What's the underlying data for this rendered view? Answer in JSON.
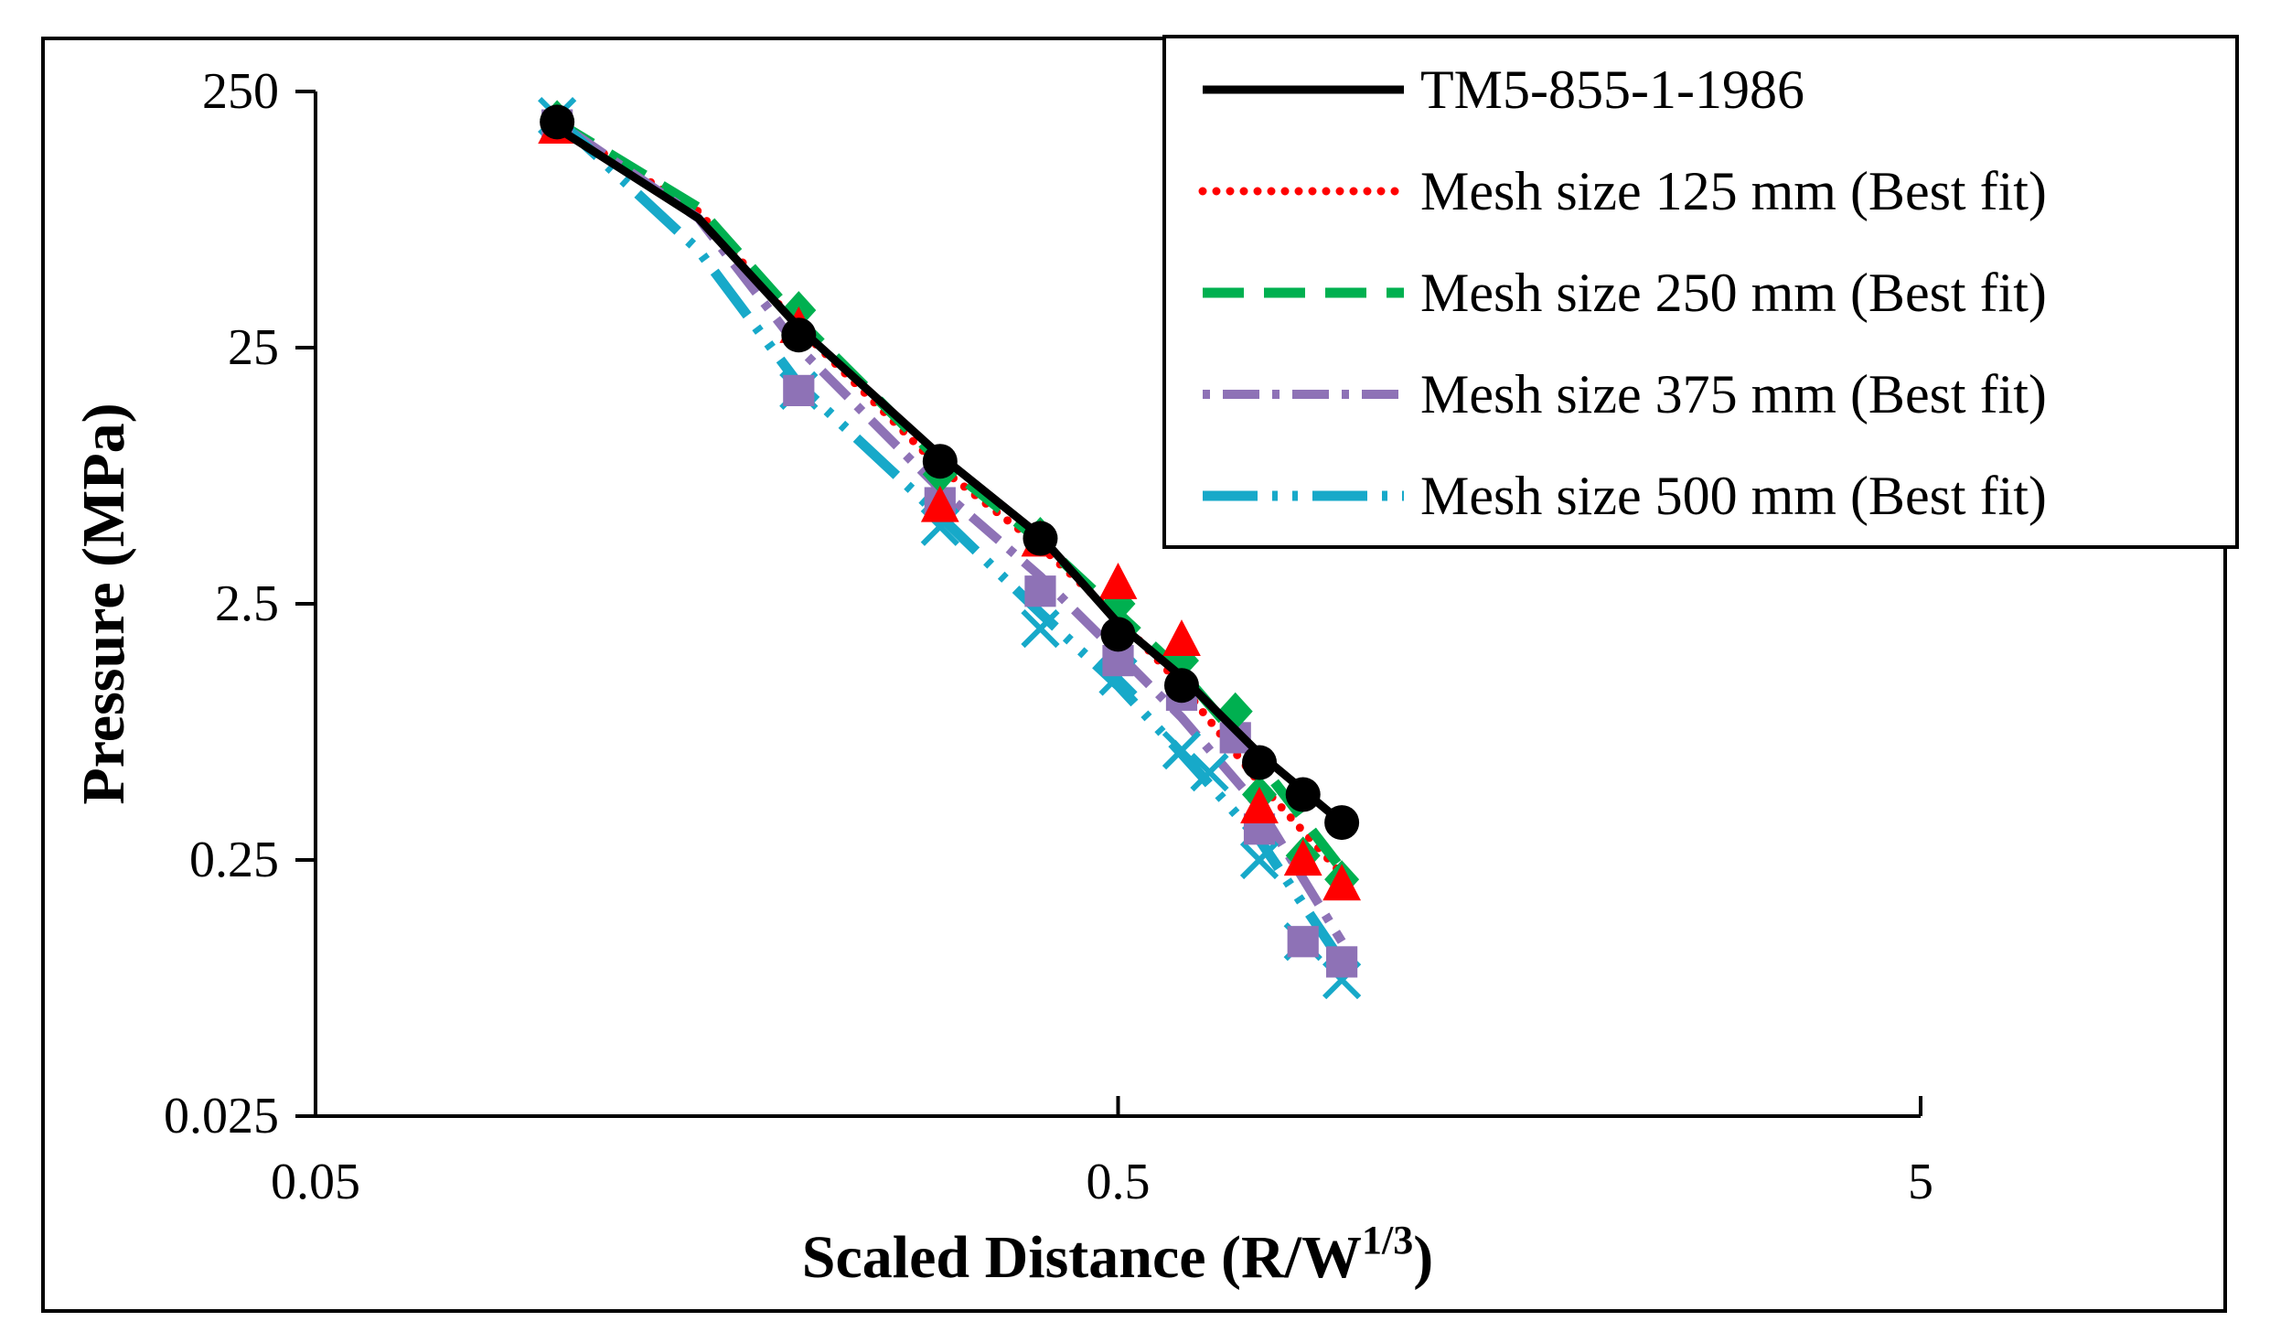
{
  "chart_data": {
    "type": "scatter",
    "x_scale": "log",
    "y_scale": "log",
    "xlabel": "Scaled Distance (R/W",
    "xlabel_sup": "1/3",
    "xlabel_suffix": ")",
    "ylabel": "Pressure (MPa)",
    "xlim": [
      0.05,
      5
    ],
    "ylim": [
      0.025,
      250
    ],
    "x_ticks": [
      0.05,
      0.5,
      5
    ],
    "x_tick_labels": [
      "0.05",
      "0.5",
      "5"
    ],
    "y_ticks": [
      250,
      25,
      2.5,
      0.25,
      0.025
    ],
    "y_tick_labels": [
      "250",
      "25",
      "2.5",
      "0.25",
      "0.025"
    ],
    "legend_position": "top-right",
    "series": [
      {
        "name": "TM5-855-1-1986",
        "color": "#000000",
        "marker": "circle",
        "line": "solid",
        "points": [
          [
            0.1,
            190
          ],
          [
            0.2,
            28
          ],
          [
            0.3,
            9
          ],
          [
            0.4,
            4.5
          ],
          [
            0.5,
            1.9
          ],
          [
            0.6,
            1.2
          ],
          [
            0.75,
            0.6
          ],
          [
            0.85,
            0.45
          ],
          [
            0.95,
            0.35
          ]
        ],
        "fit": [
          [
            0.1,
            180
          ],
          [
            0.15,
            80
          ],
          [
            0.2,
            30
          ],
          [
            0.3,
            9.5
          ],
          [
            0.4,
            4.6
          ],
          [
            0.5,
            2.1
          ],
          [
            0.6,
            1.3
          ],
          [
            0.75,
            0.65
          ],
          [
            0.95,
            0.35
          ]
        ]
      },
      {
        "name": "Mesh size 125 mm (Best fit)",
        "color": "#ff0000",
        "marker": "triangle",
        "line": "dotted",
        "points": [
          [
            0.1,
            180
          ],
          [
            0.2,
            30
          ],
          [
            0.3,
            6
          ],
          [
            0.4,
            4.4
          ],
          [
            0.5,
            3.0
          ],
          [
            0.6,
            1.8
          ],
          [
            0.75,
            0.4
          ],
          [
            0.85,
            0.25
          ],
          [
            0.95,
            0.2
          ]
        ],
        "fit": [
          [
            0.1,
            185
          ],
          [
            0.15,
            85
          ],
          [
            0.2,
            30
          ],
          [
            0.3,
            8.5
          ],
          [
            0.4,
            4.2
          ],
          [
            0.5,
            2.2
          ],
          [
            0.6,
            1.2
          ],
          [
            0.75,
            0.5
          ],
          [
            0.95,
            0.22
          ]
        ]
      },
      {
        "name": "Mesh size 250 mm (Best fit)",
        "color": "#00b050",
        "marker": "diamond",
        "line": "dashed",
        "points": [
          [
            0.1,
            195
          ],
          [
            0.2,
            35
          ],
          [
            0.3,
            8
          ],
          [
            0.4,
            4.6
          ],
          [
            0.5,
            2.5
          ],
          [
            0.6,
            1.5
          ],
          [
            0.7,
            0.95
          ],
          [
            0.75,
            0.45
          ],
          [
            0.85,
            0.26
          ],
          [
            0.95,
            0.21
          ]
        ],
        "fit": [
          [
            0.1,
            190
          ],
          [
            0.15,
            88
          ],
          [
            0.2,
            32
          ],
          [
            0.3,
            9
          ],
          [
            0.4,
            4.4
          ],
          [
            0.5,
            2.3
          ],
          [
            0.6,
            1.35
          ],
          [
            0.75,
            0.6
          ],
          [
            0.95,
            0.23
          ]
        ]
      },
      {
        "name": "Mesh size 375 mm (Best fit)",
        "color": "#8e72b6",
        "marker": "square",
        "line": "dashdot",
        "points": [
          [
            0.1,
            185
          ],
          [
            0.2,
            17
          ],
          [
            0.3,
            6.2
          ],
          [
            0.4,
            2.8
          ],
          [
            0.5,
            1.5
          ],
          [
            0.6,
            1.1
          ],
          [
            0.7,
            0.75
          ],
          [
            0.75,
            0.33
          ],
          [
            0.85,
            0.12
          ],
          [
            0.95,
            0.1
          ]
        ],
        "fit": [
          [
            0.1,
            190
          ],
          [
            0.15,
            80
          ],
          [
            0.2,
            25
          ],
          [
            0.3,
            7
          ],
          [
            0.4,
            3.2
          ],
          [
            0.5,
            1.6
          ],
          [
            0.6,
            0.9
          ],
          [
            0.75,
            0.4
          ],
          [
            0.95,
            0.12
          ]
        ]
      },
      {
        "name": "Mesh size 500 mm (Best fit)",
        "color": "#17a9c9",
        "marker": "x",
        "line": "longdashdotdot",
        "points": [
          [
            0.1,
            200
          ],
          [
            0.2,
            17
          ],
          [
            0.3,
            5
          ],
          [
            0.4,
            2.0
          ],
          [
            0.5,
            1.3
          ],
          [
            0.6,
            0.67
          ],
          [
            0.65,
            0.55
          ],
          [
            0.75,
            0.25
          ],
          [
            0.85,
            0.12
          ],
          [
            0.95,
            0.085
          ]
        ],
        "fit": [
          [
            0.1,
            195
          ],
          [
            0.15,
            60
          ],
          [
            0.2,
            18
          ],
          [
            0.3,
            5.5
          ],
          [
            0.4,
            2.3
          ],
          [
            0.5,
            1.2
          ],
          [
            0.6,
            0.65
          ],
          [
            0.75,
            0.3
          ],
          [
            0.95,
            0.1
          ]
        ]
      }
    ]
  }
}
